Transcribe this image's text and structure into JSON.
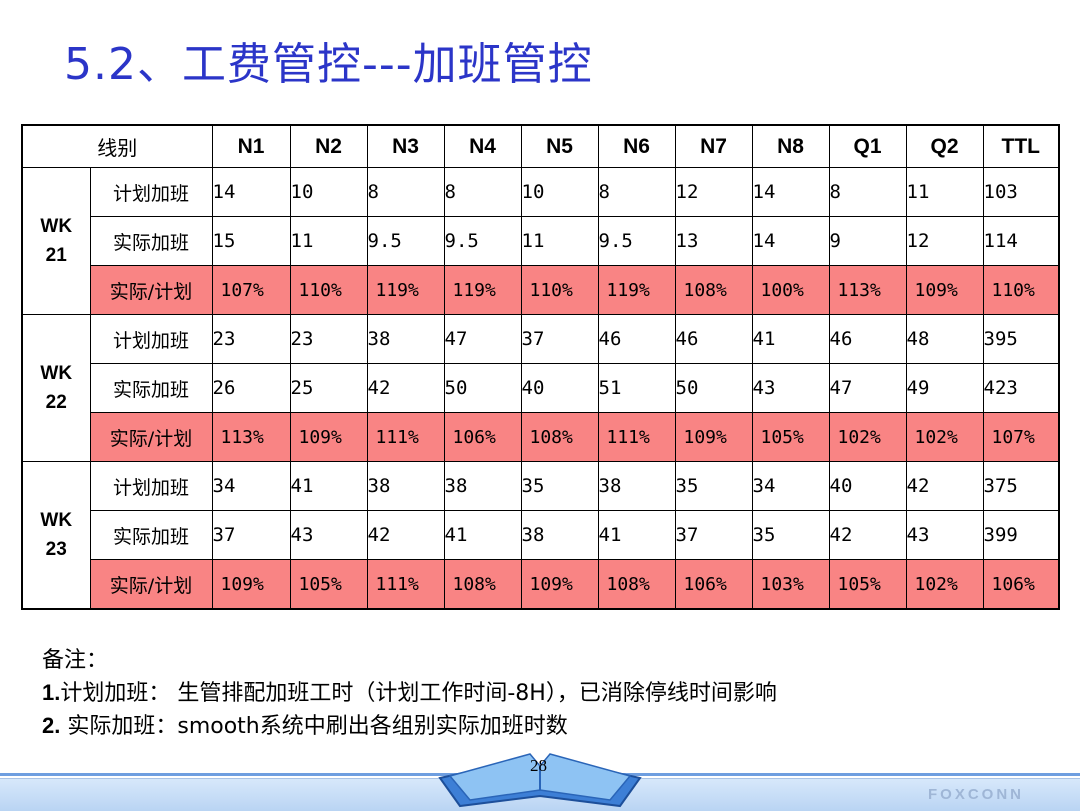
{
  "title": "5.2、工费管控---加班管控",
  "table": {
    "header_label": "线别",
    "columns": [
      "N1",
      "N2",
      "N3",
      "N4",
      "N5",
      "N6",
      "N7",
      "N8",
      "Q1",
      "Q2",
      "TTL"
    ],
    "weeks": [
      {
        "label": "WK\n21",
        "rows": [
          {
            "label": "计划加班",
            "values": [
              "14",
              "10",
              "8",
              "8",
              "10",
              "8",
              "12",
              "14",
              "8",
              "11",
              "103"
            ]
          },
          {
            "label": "实际加班",
            "values": [
              "15",
              "11",
              "9.5",
              "9.5",
              "11",
              "9.5",
              "13",
              "14",
              "9",
              "12",
              "114"
            ]
          },
          {
            "label": "实际/计划",
            "values": [
              "107%",
              "110%",
              "119%",
              "119%",
              "110%",
              "119%",
              "108%",
              "100%",
              "113%",
              "109%",
              "110%"
            ]
          }
        ]
      },
      {
        "label": "WK\n22",
        "rows": [
          {
            "label": "计划加班",
            "values": [
              "23",
              "23",
              "38",
              "47",
              "37",
              "46",
              "46",
              "41",
              "46",
              "48",
              "395"
            ]
          },
          {
            "label": "实际加班",
            "values": [
              "26",
              "25",
              "42",
              "50",
              "40",
              "51",
              "50",
              "43",
              "47",
              "49",
              "423"
            ]
          },
          {
            "label": "实际/计划",
            "values": [
              "113%",
              "109%",
              "111%",
              "106%",
              "108%",
              "111%",
              "109%",
              "105%",
              "102%",
              "102%",
              "107%"
            ]
          }
        ]
      },
      {
        "label": "WK\n23",
        "rows": [
          {
            "label": "计划加班",
            "values": [
              "34",
              "41",
              "38",
              "38",
              "35",
              "38",
              "35",
              "34",
              "40",
              "42",
              "375"
            ]
          },
          {
            "label": "实际加班",
            "values": [
              "37",
              "43",
              "42",
              "41",
              "38",
              "41",
              "37",
              "35",
              "42",
              "43",
              "399"
            ]
          },
          {
            "label": "实际/计划",
            "values": [
              "109%",
              "105%",
              "111%",
              "108%",
              "109%",
              "108%",
              "106%",
              "103%",
              "105%",
              "102%",
              "106%"
            ]
          }
        ]
      }
    ]
  },
  "notes": {
    "heading": "备注：",
    "items": [
      {
        "num": "1.",
        "text": "计划加班： 生管排配加班工时（计划工作时间-8H），已消除停线时间影响"
      },
      {
        "num": "2.",
        "text": " 实际加班：smooth系统中刷出各组别实际加班时数"
      }
    ]
  },
  "footer": {
    "page_number": "28",
    "brand": "FOXCONN"
  },
  "colors": {
    "title": "#2b35c8",
    "ratio_row_bg": "#f98484",
    "footer_bar": "#c6dcf6"
  }
}
